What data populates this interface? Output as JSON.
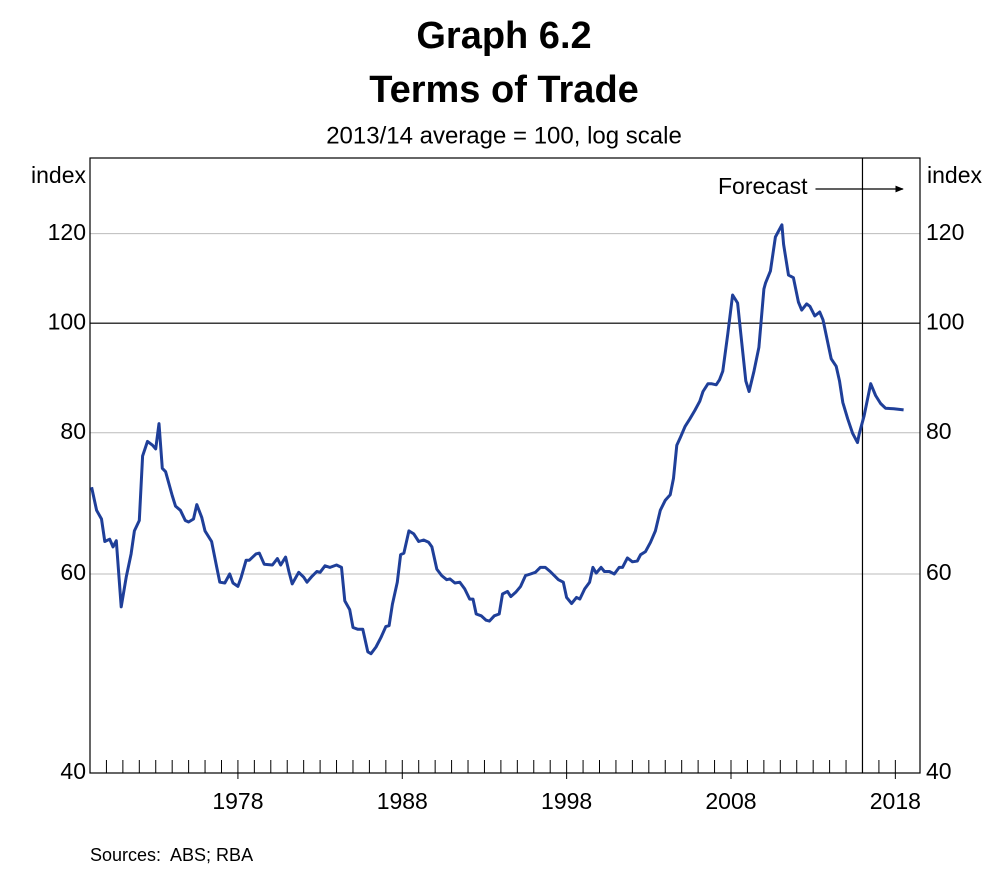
{
  "chart_data": {
    "type": "line",
    "title": "Graph 6.2",
    "subtitle": "Terms of Trade",
    "note": "2013/14 average = 100, log scale",
    "y_axis_label": "index",
    "y2_axis_label": "index",
    "source": "Sources:  ABS; RBA",
    "annotation": "Forecast",
    "forecast_start": 2016.0,
    "reference_line": 100,
    "log_scale": true,
    "grid": true,
    "xlim": [
      1969,
      2019.5
    ],
    "xticks": [
      1978,
      1988,
      1998,
      2008,
      2018
    ],
    "x_minor_ticks": [
      1970,
      1971,
      1972,
      1973,
      1974,
      1975,
      1976,
      1977,
      1978,
      1979,
      1980,
      1981,
      1982,
      1983,
      1984,
      1985,
      1986,
      1987,
      1988,
      1989,
      1990,
      1991,
      1992,
      1993,
      1994,
      1995,
      1996,
      1997,
      1998,
      1999,
      2000,
      2001,
      2002,
      2003,
      2004,
      2005,
      2006,
      2007,
      2008,
      2009,
      2010,
      2011,
      2012,
      2013,
      2014,
      2015,
      2016,
      2017,
      2018
    ],
    "ylim": [
      40,
      140
    ],
    "yticks": [
      40,
      60,
      80,
      100,
      120
    ],
    "x": [
      1969.1,
      1969.4,
      1969.7,
      1969.9,
      1970.2,
      1970.4,
      1970.6,
      1970.9,
      1971.2,
      1971.5,
      1971.7,
      1972.0,
      1972.2,
      1972.5,
      1972.8,
      1973.0,
      1973.2,
      1973.4,
      1973.6,
      1974.0,
      1974.2,
      1974.5,
      1974.8,
      1975.0,
      1975.3,
      1975.5,
      1975.8,
      1976.0,
      1976.4,
      1976.7,
      1976.9,
      1977.2,
      1977.5,
      1977.7,
      1978.0,
      1978.2,
      1978.5,
      1978.7,
      1979.1,
      1979.3,
      1979.6,
      1980.1,
      1980.4,
      1980.6,
      1980.9,
      1981.1,
      1981.3,
      1981.7,
      1982.0,
      1982.2,
      1982.5,
      1982.8,
      1983.0,
      1983.3,
      1983.6,
      1984.0,
      1984.3,
      1984.5,
      1984.8,
      1985.0,
      1985.3,
      1985.6,
      1985.9,
      1986.1,
      1986.4,
      1986.7,
      1987.0,
      1987.2,
      1987.4,
      1987.7,
      1987.9,
      1988.1,
      1988.4,
      1988.7,
      1989.0,
      1989.3,
      1989.6,
      1989.8,
      1990.1,
      1990.4,
      1990.7,
      1990.9,
      1991.2,
      1991.5,
      1991.8,
      1992.1,
      1992.3,
      1992.5,
      1992.8,
      1993.1,
      1993.3,
      1993.6,
      1993.9,
      1994.1,
      1994.4,
      1994.6,
      1994.9,
      1995.2,
      1995.5,
      1995.8,
      1996.1,
      1996.4,
      1996.7,
      1997.0,
      1997.5,
      1997.8,
      1998.0,
      1998.3,
      1998.6,
      1998.8,
      1999.1,
      1999.4,
      1999.6,
      1999.8,
      2000.1,
      2000.3,
      2000.6,
      2000.9,
      2001.2,
      2001.4,
      2001.7,
      2002.0,
      2002.3,
      2002.5,
      2002.8,
      2003.1,
      2003.4,
      2003.7,
      2004.0,
      2004.3,
      2004.5,
      2004.7,
      2004.9,
      2005.2,
      2005.5,
      2005.8,
      2006.1,
      2006.3,
      2006.6,
      2006.8,
      2007.1,
      2007.3,
      2007.5,
      2007.8,
      2008.1,
      2008.4,
      2008.6,
      2008.9,
      2009.1,
      2009.4,
      2009.7,
      2010.0,
      2010.1,
      2010.4,
      2010.7,
      2011.1,
      2011.2,
      2011.5,
      2011.8,
      2012.1,
      2012.3,
      2012.6,
      2012.8,
      2013.1,
      2013.4,
      2013.6,
      2013.9,
      2014.1,
      2014.4,
      2014.6,
      2014.8,
      2015.1,
      2015.4,
      2015.7,
      2015.8,
      2016.1,
      2016.5,
      2016.8,
      2017.1,
      2017.4,
      2017.9,
      2018.5
    ],
    "series": [
      {
        "name": "Terms of trade",
        "color": "#1f3f99",
        "values": [
          71.6,
          68.3,
          67.1,
          64.1,
          64.4,
          63.4,
          64.2,
          56.1,
          59.6,
          62.5,
          65.5,
          66.9,
          76.3,
          78.6,
          78.0,
          77.4,
          81.5,
          74.4,
          73.9,
          70.4,
          68.9,
          68.3,
          66.9,
          66.7,
          67.1,
          69.1,
          67.3,
          65.5,
          64.1,
          60.9,
          59.0,
          58.9,
          60.0,
          58.9,
          58.5,
          59.6,
          61.7,
          61.7,
          62.5,
          62.6,
          61.2,
          61.1,
          61.9,
          61.1,
          62.1,
          60.3,
          58.8,
          60.2,
          59.6,
          59.0,
          59.7,
          60.3,
          60.2,
          61.0,
          60.8,
          61.1,
          60.8,
          56.8,
          55.8,
          53.8,
          53.6,
          53.6,
          51.2,
          51.0,
          51.7,
          52.7,
          53.9,
          54.0,
          56.4,
          59.0,
          62.4,
          62.6,
          65.5,
          65.1,
          64.1,
          64.3,
          64.0,
          63.4,
          60.6,
          59.8,
          59.3,
          59.4,
          58.9,
          59.0,
          58.2,
          57.0,
          57.0,
          55.3,
          55.1,
          54.6,
          54.5,
          55.1,
          55.3,
          57.6,
          57.9,
          57.3,
          57.8,
          58.5,
          59.8,
          60.0,
          60.2,
          60.8,
          60.8,
          60.3,
          59.3,
          59.0,
          57.2,
          56.5,
          57.2,
          57.0,
          58.2,
          59.0,
          60.8,
          60.1,
          60.8,
          60.3,
          60.3,
          60.0,
          60.8,
          60.8,
          62.0,
          61.5,
          61.6,
          62.4,
          62.8,
          64.0,
          65.5,
          68.3,
          69.7,
          70.5,
          72.9,
          78.0,
          79.1,
          81.0,
          82.3,
          83.7,
          85.3,
          87.0,
          88.4,
          88.4,
          88.2,
          89.1,
          90.7,
          97.7,
          105.9,
          104.2,
          97.7,
          88.9,
          87.0,
          90.7,
          95.2,
          107.2,
          108.5,
          111.2,
          119.2,
          122.2,
          117.4,
          110.3,
          109.7,
          104.4,
          102.7,
          104.0,
          103.5,
          101.5,
          102.3,
          100.7,
          95.9,
          93.0,
          91.6,
          88.9,
          85.1,
          82.3,
          79.9,
          78.4,
          79.8,
          82.8,
          88.4,
          86.3,
          84.9,
          84.1,
          84.0,
          83.8
        ]
      }
    ]
  }
}
